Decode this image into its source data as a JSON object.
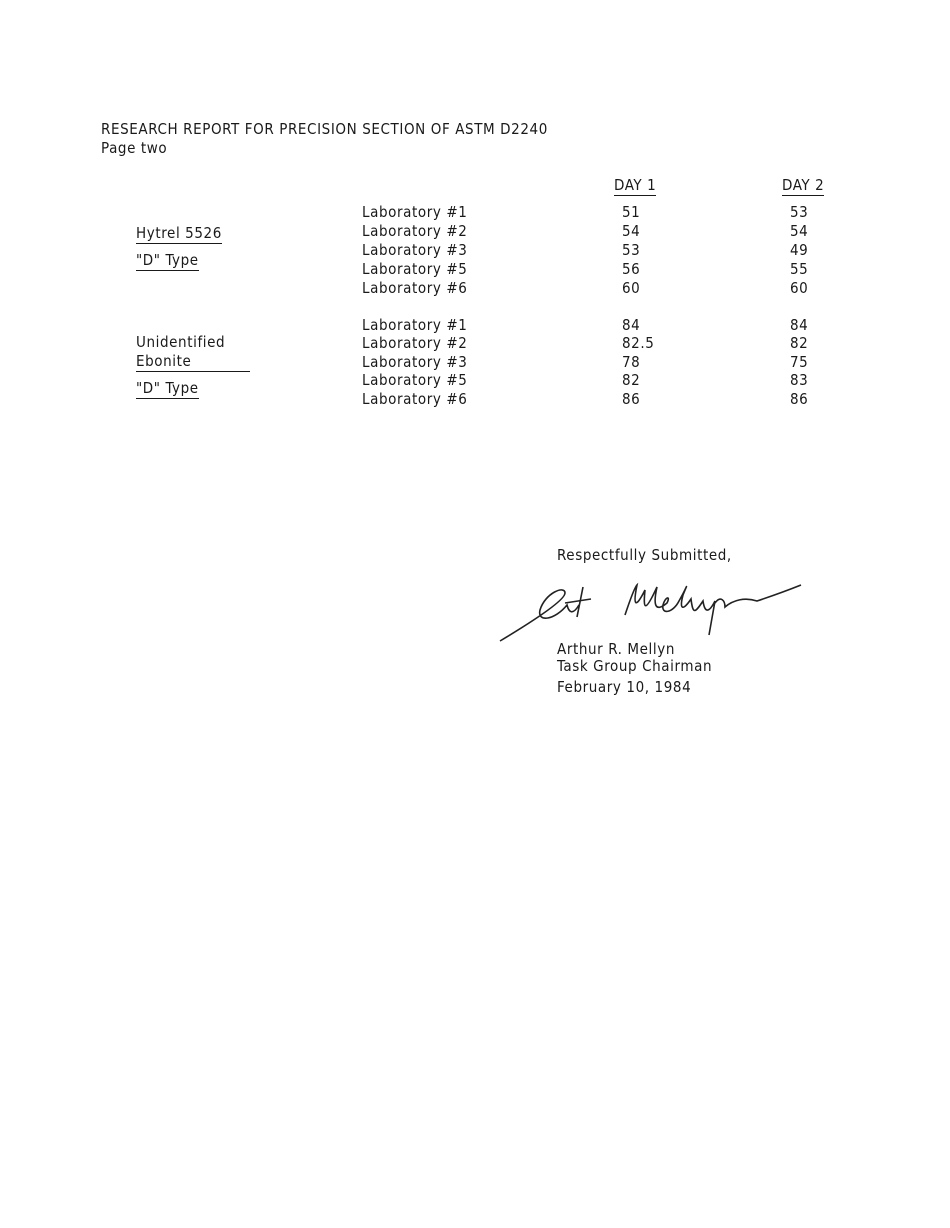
{
  "header": {
    "title": "RESEARCH REPORT FOR PRECISION SECTION OF ASTM D2240",
    "page": "Page two"
  },
  "columns": {
    "day1": "DAY 1",
    "day2": "DAY 2"
  },
  "groups": [
    {
      "labels": [
        "Hytrel 5526",
        "\"D\" Type"
      ],
      "rows": [
        {
          "lab": "Laboratory #1",
          "day1": "51",
          "day2": "53"
        },
        {
          "lab": "Laboratory #2",
          "day1": "54",
          "day2": "54"
        },
        {
          "lab": "Laboratory #3",
          "day1": "53",
          "day2": "49"
        },
        {
          "lab": "Laboratory #5",
          "day1": "56",
          "day2": "55"
        },
        {
          "lab": "Laboratory #6",
          "day1": "60",
          "day2": "60"
        }
      ]
    },
    {
      "labels": [
        "Unidentified",
        "Ebonite",
        "\"D\" Type"
      ],
      "rows": [
        {
          "lab": "Laboratory #1",
          "day1": "84",
          "day2": "84"
        },
        {
          "lab": "Laboratory #2",
          "day1": "82.5",
          "day2": "82"
        },
        {
          "lab": "Laboratory #3",
          "day1": "78",
          "day2": "75"
        },
        {
          "lab": "Laboratory #5",
          "day1": "82",
          "day2": "83"
        },
        {
          "lab": "Laboratory #6",
          "day1": "86",
          "day2": "86"
        }
      ]
    }
  ],
  "closing": {
    "salutation": "Respectfully Submitted,",
    "signature": "Art Mellyn",
    "name": "Arthur R. Mellyn",
    "role": "Task Group Chairman",
    "date": "February 10, 1984"
  }
}
